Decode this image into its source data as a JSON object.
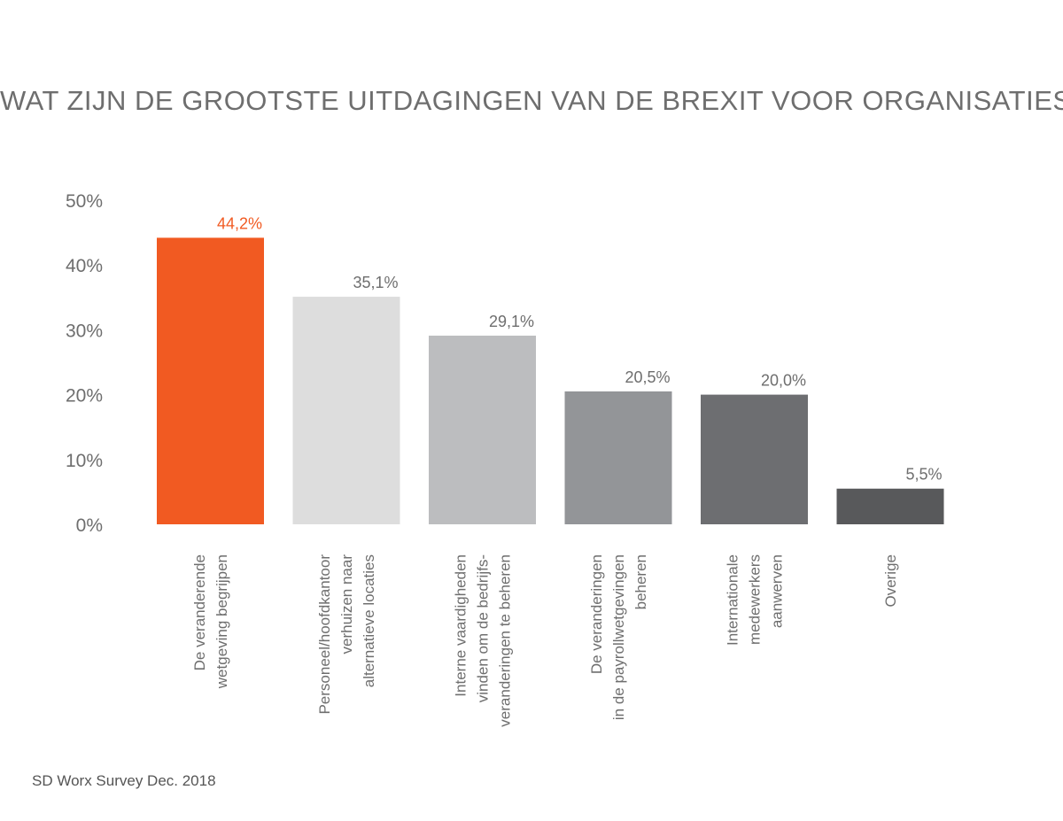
{
  "chart_data": {
    "type": "bar",
    "title": "WAT ZIJN DE GROOTSTE UITDAGINGEN VAN DE BREXIT VOOR ORGANISATIES?",
    "categories": [
      [
        "De veranderende",
        "wetgeving begrijpen"
      ],
      [
        "Personeel/hoofdkantoor",
        "verhuizen naar",
        "alternatieve locaties"
      ],
      [
        "Interne vaardigheden",
        "vinden om de bedrijfs-",
        "veranderingen te beheren"
      ],
      [
        "De veranderingen",
        "in de payrollwetgevingen",
        "beheren"
      ],
      [
        "Internationale",
        "medewerkers",
        "aanwerven"
      ],
      [
        "Overige"
      ]
    ],
    "values": [
      44.2,
      35.1,
      29.1,
      20.5,
      20.0,
      5.5
    ],
    "value_labels": [
      "44,2%",
      "35,1%",
      "29,1%",
      "20,5%",
      "20,0%",
      "5,5%"
    ],
    "bar_colors": [
      "#f15a22",
      "#dddddd",
      "#bcbdbf",
      "#939598",
      "#6d6e71",
      "#58595b"
    ],
    "value_label_colors": [
      "#f15a22",
      "#6e6e6e",
      "#6e6e6e",
      "#6e6e6e",
      "#6e6e6e",
      "#6e6e6e"
    ],
    "ylim": [
      0,
      50
    ],
    "yticks": [
      0,
      10,
      20,
      30,
      40,
      50
    ],
    "ytick_labels": [
      "0%",
      "10%",
      "20%",
      "30%",
      "40%",
      "50%"
    ],
    "grid": false,
    "legend": "none"
  },
  "source": "SD Worx Survey Dec. 2018"
}
